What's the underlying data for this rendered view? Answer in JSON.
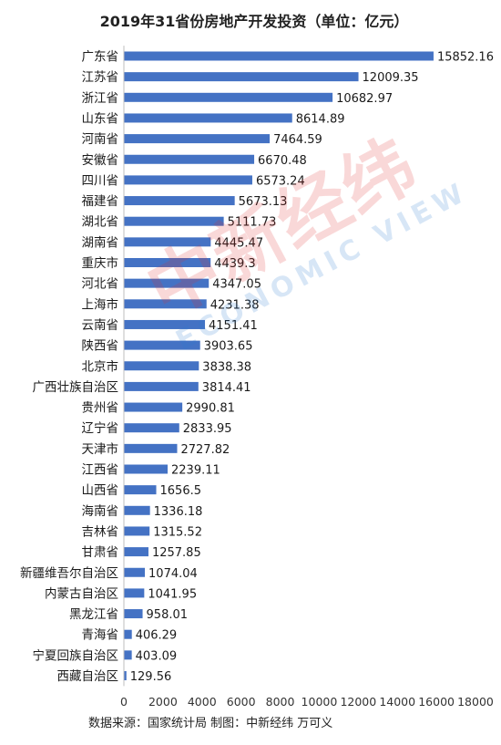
{
  "chart_data": {
    "type": "bar",
    "orientation": "horizontal",
    "title": "2019年31省份房地产开发投资（单位：亿元）",
    "categories": [
      "广东省",
      "江苏省",
      "浙江省",
      "山东省",
      "河南省",
      "安徽省",
      "四川省",
      "福建省",
      "湖北省",
      "湖南省",
      "重庆市",
      "河北省",
      "上海市",
      "云南省",
      "陕西省",
      "北京市",
      "广西壮族自治区",
      "贵州省",
      "辽宁省",
      "天津市",
      "江西省",
      "山西省",
      "海南省",
      "吉林省",
      "甘肃省",
      "新疆维吾尔自治区",
      "内蒙古自治区",
      "黑龙江省",
      "青海省",
      "宁夏回族自治区",
      "西藏自治区"
    ],
    "values": [
      15852.16,
      12009.35,
      10682.97,
      8614.89,
      7464.59,
      6670.48,
      6573.24,
      5673.13,
      5111.73,
      4445.47,
      4439.3,
      4347.05,
      4231.38,
      4151.41,
      3903.65,
      3838.38,
      3814.41,
      2990.81,
      2833.95,
      2727.82,
      2239.11,
      1656.5,
      1336.18,
      1315.52,
      1257.85,
      1074.04,
      1041.95,
      958.01,
      406.29,
      403.09,
      129.56
    ],
    "value_labels": [
      "15852.16",
      "12009.35",
      "10682.97",
      "8614.89",
      "7464.59",
      "6670.48",
      "6573.24",
      "5673.13",
      "5111.73",
      "4445.47",
      "4439.3",
      "4347.05",
      "4231.38",
      "4151.41",
      "3903.65",
      "3838.38",
      "3814.41",
      "2990.81",
      "2833.95",
      "2727.82",
      "2239.11",
      "1656.5",
      "1336.18",
      "1315.52",
      "1257.85",
      "1074.04",
      "1041.95",
      "958.01",
      "406.29",
      "403.09",
      "129.56"
    ],
    "xlim": [
      0,
      18000
    ],
    "x_ticks": [
      "0",
      "2000",
      "4000",
      "6000",
      "8000",
      "10000",
      "12000",
      "14000",
      "16000",
      "18000"
    ],
    "grid": false,
    "bar_color": "#4472c4",
    "source_note": "数据来源：国家统计局 制图：中新经纬 万可义"
  },
  "watermark": {
    "main": "中新经纬",
    "sub": "ECONOMIC VIEW"
  }
}
